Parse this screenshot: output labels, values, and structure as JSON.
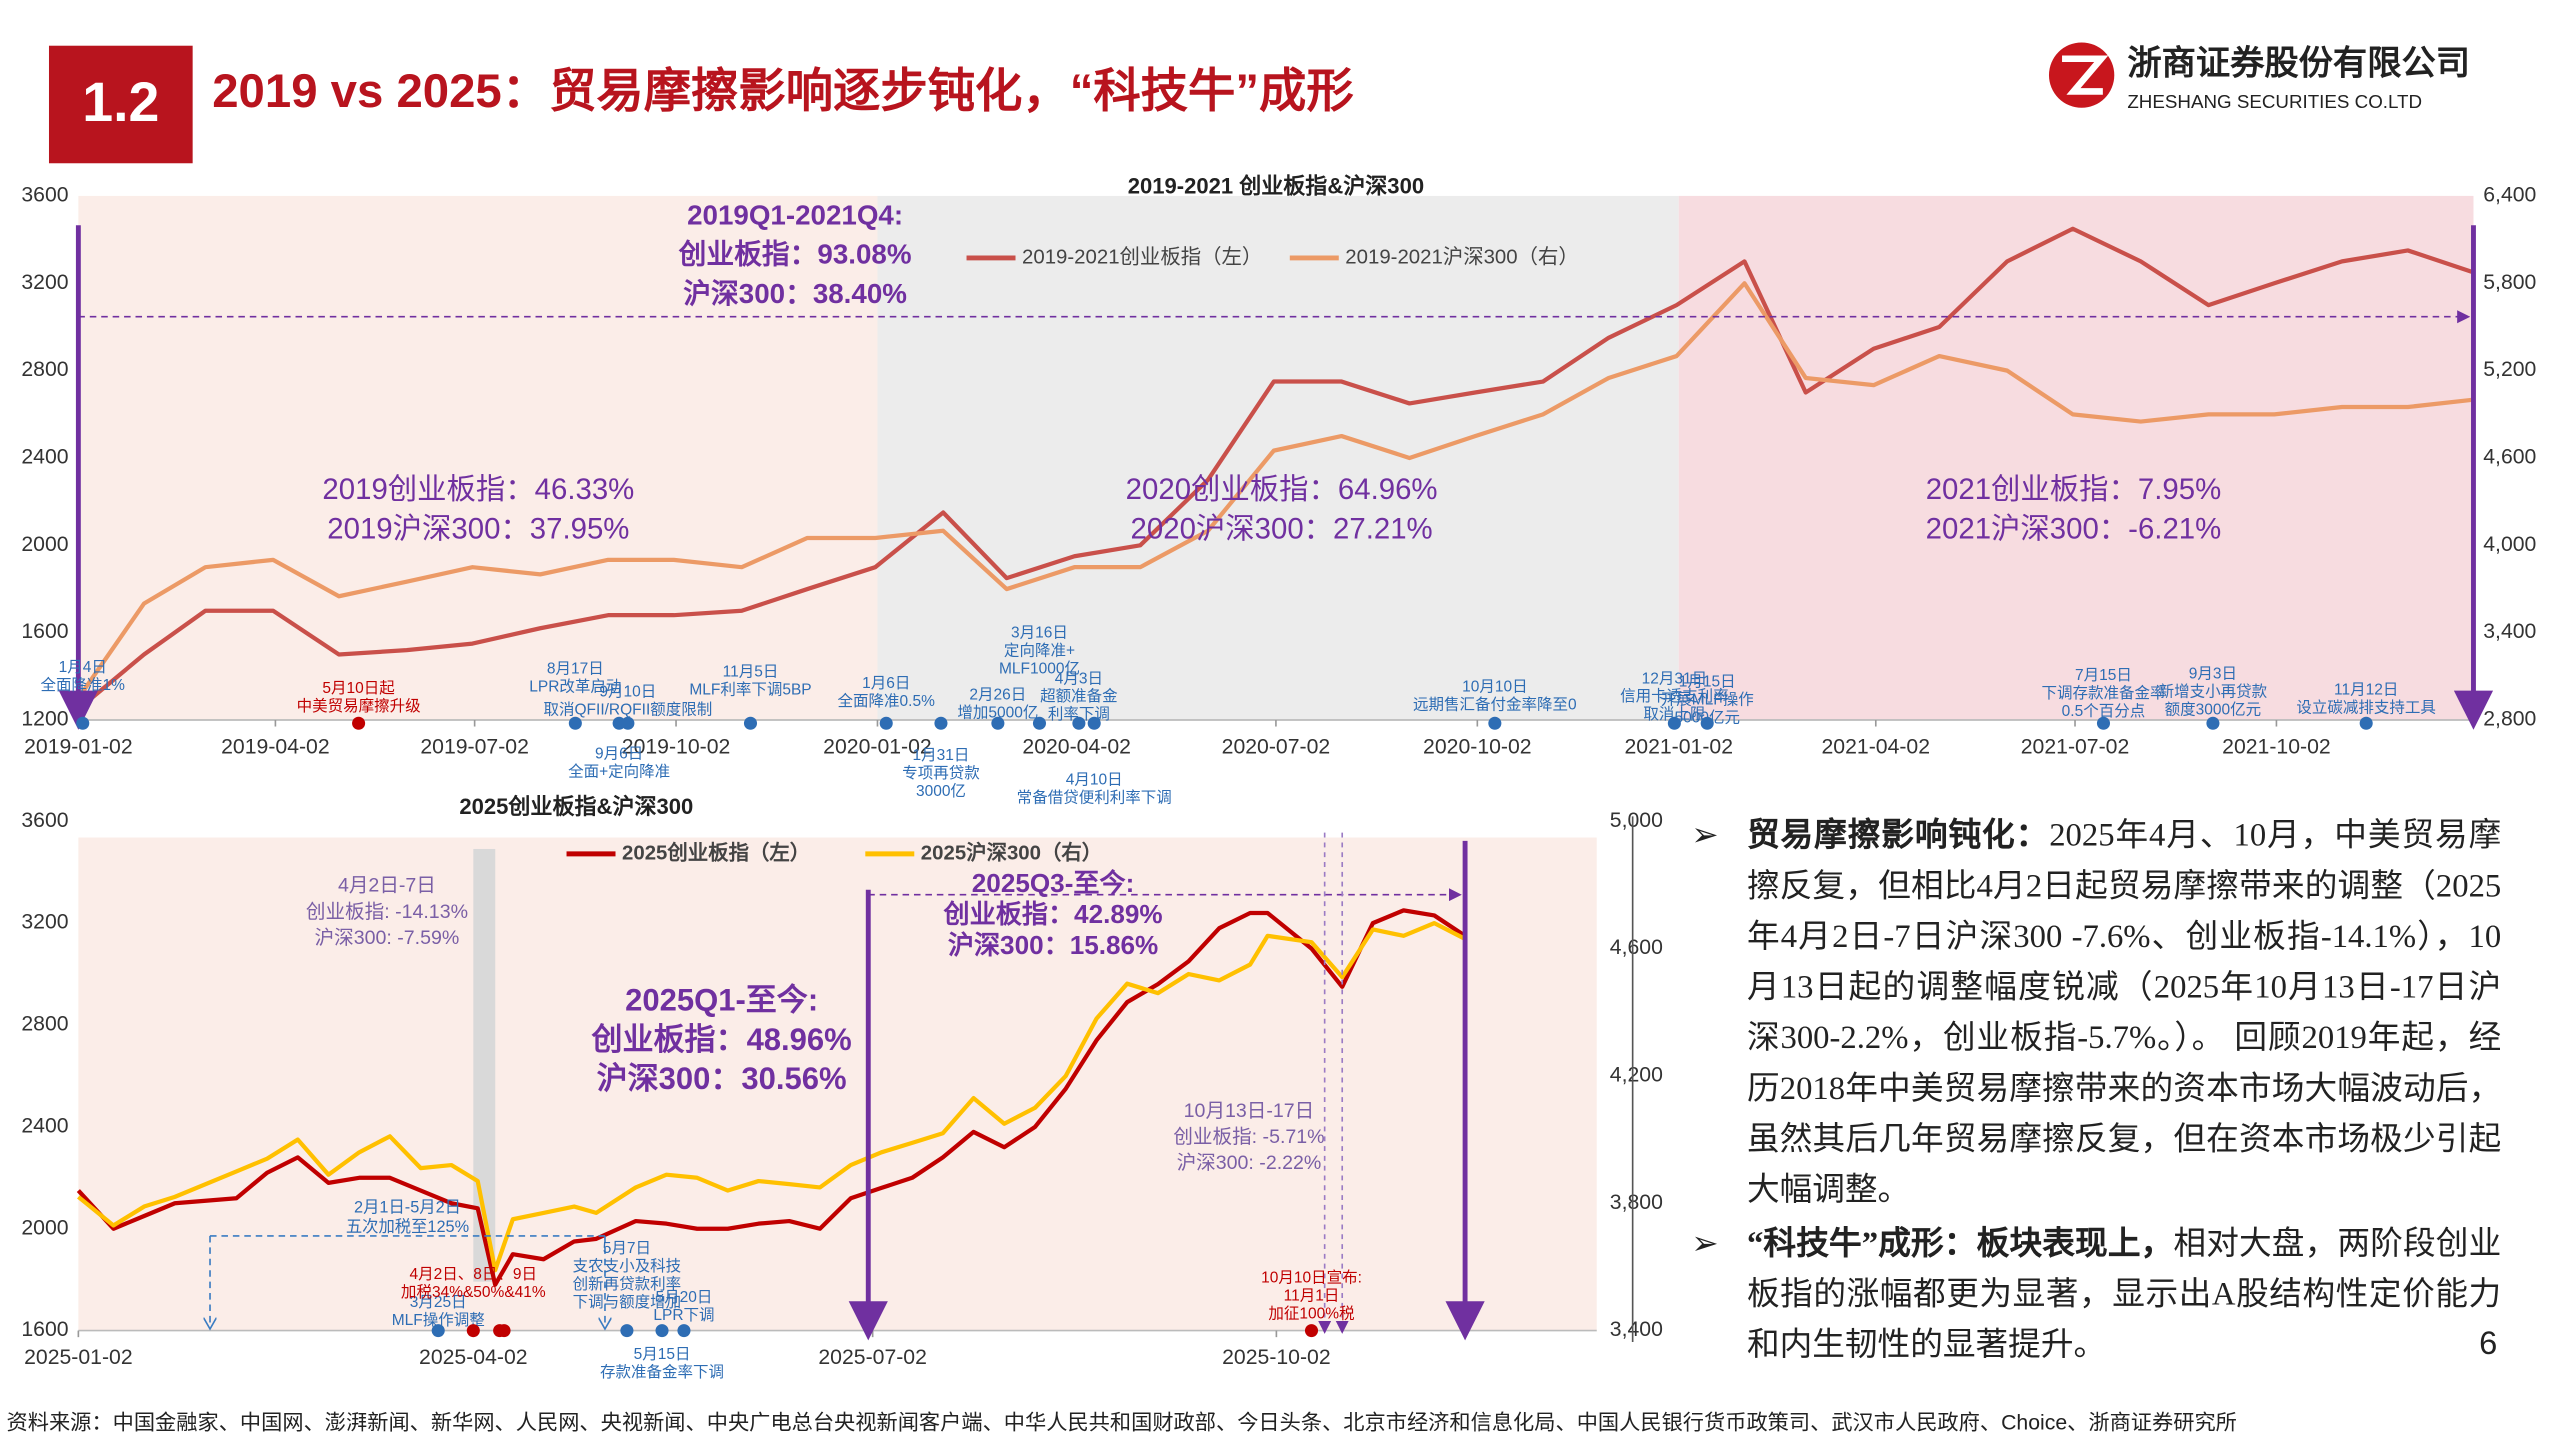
{
  "header": {
    "section": "1.2",
    "title": "2019 vs 2025：贸易摩擦影响逐步钝化，“科技牛”成形",
    "company": "浙商证券股份有限公司",
    "company_en": "ZHESHANG SECURITIES CO.LTD"
  },
  "chart_data": [
    {
      "type": "line",
      "title": "2019-2021 创业板指&沪深300",
      "x": [
        "2019-01-02",
        "2019-02-01",
        "2019-03-01",
        "2019-04-01",
        "2019-05-01",
        "2019-06-01",
        "2019-07-01",
        "2019-08-01",
        "2019-09-01",
        "2019-10-01",
        "2019-11-01",
        "2019-12-01",
        "2020-01-01",
        "2020-02-01",
        "2020-03-01",
        "2020-04-01",
        "2020-05-01",
        "2020-06-01",
        "2020-07-01",
        "2020-08-01",
        "2020-09-01",
        "2020-10-01",
        "2020-11-01",
        "2020-12-01",
        "2021-01-01",
        "2021-02-01",
        "2021-03-01",
        "2021-04-01",
        "2021-05-01",
        "2021-06-01",
        "2021-07-01",
        "2021-08-01",
        "2021-09-01",
        "2021-10-01",
        "2021-11-01",
        "2021-12-01",
        "2021-12-31"
      ],
      "series": [
        {
          "name": "2019-2021创业板指（左）",
          "color": "#c9504a",
          "values": [
            1250,
            1500,
            1700,
            1700,
            1500,
            1520,
            1550,
            1620,
            1680,
            1680,
            1700,
            1800,
            1900,
            2150,
            1850,
            1950,
            2000,
            2300,
            2750,
            2750,
            2650,
            2700,
            2750,
            2950,
            3100,
            3300,
            2700,
            2900,
            3000,
            3300,
            3450,
            3300,
            3100,
            3200,
            3300,
            3350,
            3250
          ]
        },
        {
          "name": "2019-2021沪深300（右）",
          "color": "#ec9a66",
          "axis": "y2",
          "values": [
            2950,
            3600,
            3850,
            3900,
            3650,
            3750,
            3850,
            3800,
            3900,
            3900,
            3850,
            4050,
            4050,
            4100,
            3700,
            3850,
            3850,
            4100,
            4650,
            4750,
            4600,
            4750,
            4900,
            5150,
            5300,
            5800,
            5150,
            5100,
            5300,
            5200,
            4900,
            4850,
            4900,
            4900,
            4950,
            4950,
            5000
          ]
        }
      ],
      "xlim": [
        "2019-01-02",
        "2021-12-31"
      ],
      "xticks": [
        "2019-01-02",
        "2019-04-02",
        "2019-07-02",
        "2019-10-02",
        "2020-01-02",
        "2020-04-02",
        "2020-07-02",
        "2020-10-02",
        "2021-01-02",
        "2021-04-02",
        "2021-07-02",
        "2021-10-02"
      ],
      "ylim": [
        1200,
        3600
      ],
      "yticks": [
        1200,
        1600,
        2000,
        2400,
        2800,
        3200,
        3600
      ],
      "y2lim": [
        2800,
        6400
      ],
      "y2ticks": [
        {
          "value": 2800,
          "label": "2,800"
        },
        {
          "value": 3400,
          "label": "3,400"
        },
        {
          "value": 4000,
          "label": "4,000"
        },
        {
          "value": 4600,
          "label": "4,600"
        },
        {
          "value": 5200,
          "label": "5,200"
        },
        {
          "value": 5800,
          "label": "5,800"
        },
        {
          "value": 6400,
          "label": "6,400"
        }
      ],
      "bands": [
        {
          "x": [
            "2019-01-02",
            "2020-01-02"
          ],
          "color": "#fbede8"
        },
        {
          "x": [
            "2020-01-02",
            "2021-01-02"
          ],
          "color": "#ececec"
        },
        {
          "x": [
            "2021-01-02",
            "2021-12-31"
          ],
          "color": "#f7dce0"
        }
      ],
      "stats": [
        [
          "2019Q1-2021Q4:",
          "创业板指：93.08%",
          "沪深300：38.40%"
        ],
        [
          "2019创业板指：46.33%",
          "2019沪深300：37.95%"
        ],
        [
          "2020创业板指：64.96%",
          "2020沪深300：27.21%"
        ],
        [
          "2021创业板指：7.95%",
          "2021沪深300：-6.21%"
        ]
      ],
      "annotations": [
        {
          "x": "2019-01-04",
          "text": [
            "1月4日",
            "全面降准1%"
          ]
        },
        {
          "x": "2019-05-10",
          "text": [
            "5月10日起",
            "中美贸易摩擦升级"
          ],
          "color": "#c00000"
        },
        {
          "x": "2019-08-17",
          "text": [
            "8月17日",
            "LPR改革启动"
          ]
        },
        {
          "x": "2019-09-06",
          "text": [
            "9月6日",
            "全面+定向降准"
          ]
        },
        {
          "x": "2019-09-10",
          "text": [
            "9月10日",
            "取消QFII/RQFII额度限制"
          ]
        },
        {
          "x": "2019-11-05",
          "text": [
            "11月5日",
            "MLF利率下调5BP"
          ]
        },
        {
          "x": "2020-01-06",
          "text": [
            "1月6日",
            "全面降准0.5%"
          ]
        },
        {
          "x": "2020-01-31",
          "text": [
            "1月31日",
            "专项再贷款",
            "3000亿"
          ]
        },
        {
          "x": "2020-02-26",
          "text": [
            "2月26日",
            "增加5000亿"
          ]
        },
        {
          "x": "2020-03-16",
          "text": [
            "3月16日",
            "定向降准+",
            "MLF1000亿"
          ]
        },
        {
          "x": "2020-04-03",
          "text": [
            "4月3日",
            "超额准备金",
            "利率下调"
          ]
        },
        {
          "x": "2020-04-10",
          "text": [
            "4月10日",
            "常备借贷便利利率下调"
          ]
        },
        {
          "x": "2020-10-10",
          "text": [
            "10月10日",
            "远期售汇备付金率降至0"
          ]
        },
        {
          "x": "2020-12-31",
          "text": [
            "12月31日",
            "信用卡透支利率",
            "取消上限"
          ]
        },
        {
          "x": "2021-01-15",
          "text": [
            "1月15日",
            "开展MLF操作",
            "5000亿元"
          ]
        },
        {
          "x": "2021-07-15",
          "text": [
            "7月15日",
            "下调存款准备金率",
            "0.5个百分点"
          ]
        },
        {
          "x": "2021-09-03",
          "text": [
            "9月3日",
            "新增支小再贷款",
            "额度3000亿元"
          ]
        },
        {
          "x": "2021-11-12",
          "text": [
            "11月12日",
            "设立碳减排支持工具"
          ]
        }
      ]
    },
    {
      "type": "line",
      "title": "2025创业板指&沪深300",
      "x": [
        "2025-01-02",
        "2025-01-10",
        "2025-01-17",
        "2025-01-24",
        "2025-02-07",
        "2025-02-14",
        "2025-02-21",
        "2025-02-28",
        "2025-03-07",
        "2025-03-14",
        "2025-03-21",
        "2025-03-28",
        "2025-04-03",
        "2025-04-07",
        "2025-04-11",
        "2025-04-18",
        "2025-04-25",
        "2025-04-30",
        "2025-05-09",
        "2025-05-16",
        "2025-05-23",
        "2025-05-30",
        "2025-06-06",
        "2025-06-13",
        "2025-06-20",
        "2025-06-27",
        "2025-07-04",
        "2025-07-11",
        "2025-07-18",
        "2025-07-25",
        "2025-08-01",
        "2025-08-08",
        "2025-08-15",
        "2025-08-22",
        "2025-08-29",
        "2025-09-05",
        "2025-09-12",
        "2025-09-19",
        "2025-09-26",
        "2025-09-30",
        "2025-10-10",
        "2025-10-17",
        "2025-10-24",
        "2025-10-31",
        "2025-11-07",
        "2025-11-14"
      ],
      "series": [
        {
          "name": "2025创业板指（左）",
          "color": "#c00000",
          "values": [
            2150,
            2000,
            2050,
            2100,
            2120,
            2220,
            2280,
            2180,
            2200,
            2200,
            2150,
            2100,
            2080,
            1780,
            1900,
            1880,
            1950,
            1960,
            2030,
            2020,
            2000,
            2000,
            2020,
            2030,
            2000,
            2120,
            2160,
            2200,
            2280,
            2380,
            2320,
            2400,
            2550,
            2740,
            2890,
            2960,
            3050,
            3180,
            3240,
            3240,
            3100,
            2950,
            3200,
            3250,
            3230,
            3150
          ]
        },
        {
          "name": "2025沪深300（右）",
          "color": "#ffc000",
          "axis": "y2",
          "values": [
            3820,
            3730,
            3790,
            3820,
            3900,
            3940,
            4000,
            3890,
            3960,
            4010,
            3910,
            3920,
            3870,
            3590,
            3750,
            3770,
            3790,
            3770,
            3850,
            3890,
            3880,
            3840,
            3870,
            3860,
            3850,
            3920,
            3960,
            3990,
            4020,
            4130,
            4050,
            4100,
            4200,
            4380,
            4490,
            4460,
            4520,
            4500,
            4550,
            4640,
            4620,
            4510,
            4660,
            4640,
            4680,
            4630
          ]
        }
      ],
      "xlim": [
        "2025-01-02",
        "2025-12-14"
      ],
      "xticks": [
        "2025-01-02",
        "2025-04-02",
        "2025-07-02",
        "2025-10-02"
      ],
      "ylim": [
        1600,
        3600
      ],
      "yticks": [
        1600,
        2000,
        2400,
        2800,
        3200,
        3600
      ],
      "y2lim": [
        3400,
        5000
      ],
      "y2ticks": [
        {
          "value": 3400,
          "label": "3,400"
        },
        {
          "value": 3800,
          "label": "3,800"
        },
        {
          "value": 4200,
          "label": "4,200"
        },
        {
          "value": 4600,
          "label": "4,600"
        },
        {
          "value": 5000,
          "label": "5,000"
        }
      ],
      "bands": [
        {
          "x": [
            "2025-01-02",
            "2025-12-14"
          ],
          "color": "#fbede8"
        },
        {
          "x": [
            "2025-04-02",
            "2025-04-07"
          ],
          "color": "#d9d9d9"
        }
      ],
      "highlight": [
        "2025-07-01",
        "2025-11-14"
      ],
      "drop_window": [
        "2025-10-13",
        "2025-10-17"
      ],
      "stats": [
        [
          "4月2日-7日",
          "创业板指: -14.13%",
          "沪深300: -7.59%"
        ],
        [
          "2025Q1-至今:",
          "创业板指：48.96%",
          "沪深300：30.56%"
        ],
        [
          "2025Q3-至今:",
          "创业板指：42.89%",
          "沪深300：15.86%"
        ],
        [
          "10月13日-17日",
          "创业板指: -5.71%",
          "沪深300: -2.22%"
        ]
      ],
      "range_annotation": {
        "x": [
          "2025-02-01",
          "2025-05-02"
        ],
        "text": [
          "2月1日-5月2日",
          "五次加税至125%"
        ]
      },
      "annotations": [
        {
          "x": "2025-03-25",
          "text": [
            "3月25日",
            "MLF操作调整"
          ]
        },
        {
          "x": "2025-04-02",
          "text": [
            "4月2日、8日、9日",
            "加税34%&50%&41%"
          ],
          "color": "#c00000",
          "more_x": [
            "2025-04-08",
            "2025-04-09"
          ]
        },
        {
          "x": "2025-05-07",
          "text": [
            "5月7日",
            "支农支小及科技",
            "创新再贷款利率",
            "下调与额度增加"
          ]
        },
        {
          "x": "2025-05-15",
          "text": [
            "5月15日",
            "存款准备金率下调"
          ]
        },
        {
          "x": "2025-05-20",
          "text": [
            "5月20日",
            "LPR下调"
          ]
        },
        {
          "x": "2025-10-10",
          "text": [
            "10月10日宣布:",
            "11月1日",
            "加征100%税"
          ],
          "color": "#c00000"
        }
      ]
    }
  ],
  "text_panel": [
    {
      "lead": "贸易摩擦影响钝化：",
      "body": "2025年4月、10月，中美贸易摩擦反复，但相比4月2日起贸易摩擦带来的调整（2025年4月2日-7日沪深300 -7.6%、创业板指-14.1%），10月13日起的调整幅度锐减（2025年10月13日-17日沪深300-2.2%，创业板指-5.7%。）。 回顾2019年起，经历2018年中美贸易摩擦带来的资本市场大幅波动后，虽然其后几年贸易摩擦反复，但在资本市场极少引起大幅调整。"
    },
    {
      "lead": "“科技牛”成形：板块表现上，",
      "body": "相对大盘，两阶段创业板指的涨幅都更为显著，显示出A股结构性定价能力和内生韧性的显著提升。"
    }
  ],
  "page_number": "6",
  "source": "资料来源：中国金融家、中国网、澎湃新闻、新华网、人民网、央视新闻、中央广电总台央视新闻客户端、中华人民共和国财政部、今日头条、北京市经济和信息化局、中国人民银行货币政策司、武汉市人民政府、Choice、浙商证券研究所"
}
